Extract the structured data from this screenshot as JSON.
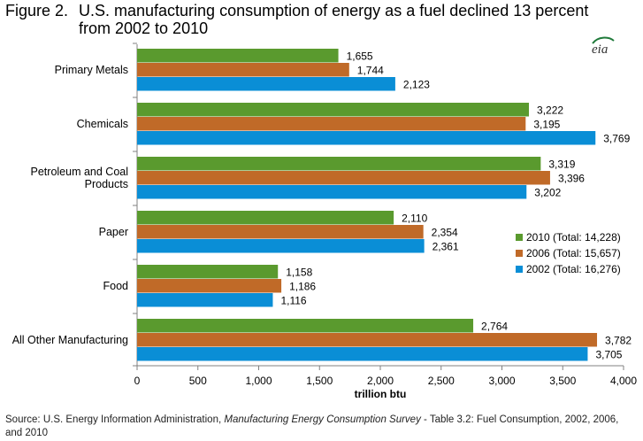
{
  "figure": {
    "label": "Figure 2.",
    "title_line1": "U.S. manufacturing consumption of energy as a fuel declined 13 percent",
    "title_line2": "from 2002 to 2010"
  },
  "logo_text": "eia",
  "source": {
    "prefix": "Source:  U.S. Energy Information Administration, ",
    "italic": "Manufacturing Energy Consumption Survey",
    "suffix": " - Table 3.2: Fuel Consumption, 2002, 2006, and 2010"
  },
  "colors": {
    "2010": "#5a9a2e",
    "2006": "#c06a28",
    "2002": "#0a8ed6",
    "axis": "#808080",
    "text": "#000000"
  },
  "chart_data": {
    "type": "bar",
    "orientation": "horizontal",
    "categories": [
      "Primary Metals",
      "Chemicals",
      "Petroleum and Coal Products",
      "Paper",
      "Food",
      "All Other Manufacturing"
    ],
    "category_lines": [
      [
        "Primary Metals"
      ],
      [
        "Chemicals"
      ],
      [
        "Petroleum and Coal",
        "Products"
      ],
      [
        "Paper"
      ],
      [
        "Food"
      ],
      [
        "All Other Manufacturing"
      ]
    ],
    "series": [
      {
        "name": "2010 (Total:  14,228)",
        "key": "2010",
        "values": [
          1655,
          3222,
          3319,
          2110,
          1158,
          2764
        ],
        "labels": [
          "1,655",
          "3,222",
          "3,319",
          "2,110",
          "1,158",
          "2,764"
        ]
      },
      {
        "name": "2006 (Total:  15,657)",
        "key": "2006",
        "values": [
          1744,
          3195,
          3396,
          2354,
          1186,
          3782
        ],
        "labels": [
          "1,744",
          "3,195",
          "3,396",
          "2,354",
          "1,186",
          "3,782"
        ]
      },
      {
        "name": "2002 (Total:  16,276)",
        "key": "2002",
        "values": [
          2123,
          3769,
          3202,
          2361,
          1116,
          3705
        ],
        "labels": [
          "2,123",
          "3,769",
          "3,202",
          "2,361",
          "1,116",
          "3,705"
        ]
      }
    ],
    "xlim": [
      0,
      4000
    ],
    "xticks": [
      0,
      500,
      1000,
      1500,
      2000,
      2500,
      3000,
      3500,
      4000
    ],
    "xtick_labels": [
      "0",
      "500",
      "1,000",
      "1,500",
      "2,000",
      "2,500",
      "3,000",
      "3,500",
      "4,000"
    ],
    "xlabel": "trillion btu",
    "ylabel": "",
    "grid": false,
    "legend_position": "right"
  }
}
